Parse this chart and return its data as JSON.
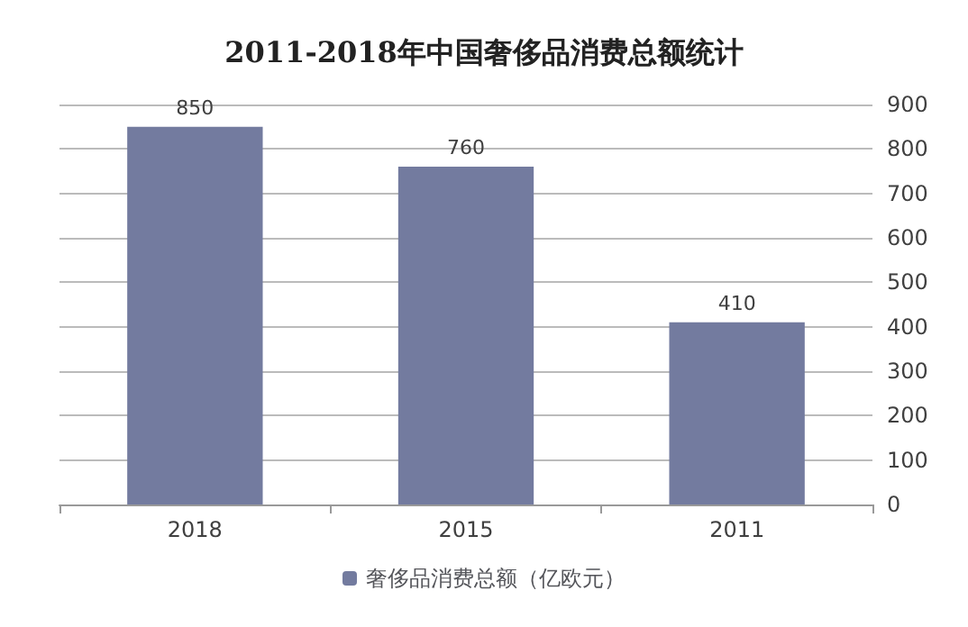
{
  "chart_data": {
    "type": "bar",
    "title": "2011-2018年中国奢侈品消费总额统计",
    "categories": [
      "2018",
      "2015",
      "2011"
    ],
    "series": [
      {
        "name": "奢侈品消费总额（亿欧元）",
        "color": "#737b9f",
        "values": [
          850,
          760,
          410
        ]
      }
    ],
    "ylim": [
      0,
      900
    ],
    "yticks": [
      0,
      100,
      200,
      300,
      400,
      500,
      600,
      700,
      800,
      900
    ],
    "grid": "y",
    "legend": "bottom",
    "data_labels": true
  }
}
